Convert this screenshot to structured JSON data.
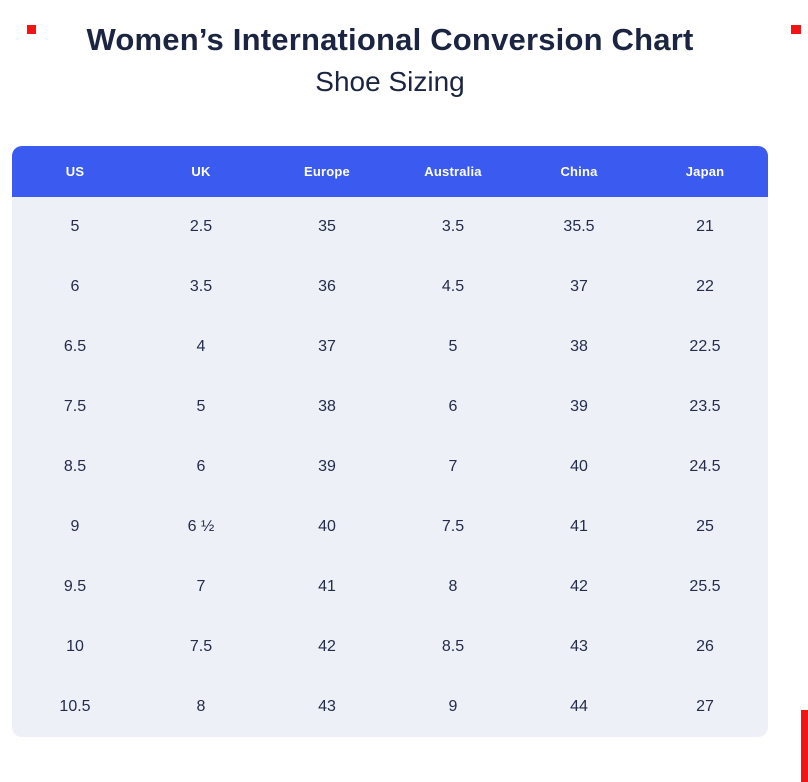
{
  "page": {
    "title": "Women’s International Conversion Chart",
    "subtitle": "Shoe Sizing"
  },
  "chart_data": {
    "type": "table",
    "title": "Women’s International Conversion Chart",
    "subtitle": "Shoe Sizing",
    "columns": [
      "US",
      "UK",
      "Europe",
      "Australia",
      "China",
      "Japan"
    ],
    "rows": [
      [
        "5",
        "2.5",
        "35",
        "3.5",
        "35.5",
        "21"
      ],
      [
        "6",
        "3.5",
        "36",
        "4.5",
        "37",
        "22"
      ],
      [
        "6.5",
        "4",
        "37",
        "5",
        "38",
        "22.5"
      ],
      [
        "7.5",
        "5",
        "38",
        "6",
        "39",
        "23.5"
      ],
      [
        "8.5",
        "6",
        "39",
        "7",
        "40",
        "24.5"
      ],
      [
        "9",
        "6 ½",
        "40",
        "7.5",
        "41",
        "25"
      ],
      [
        "9.5",
        "7",
        "41",
        "8",
        "42",
        "25.5"
      ],
      [
        "10",
        "7.5",
        "42",
        "8.5",
        "43",
        "26"
      ],
      [
        "10.5",
        "8",
        "43",
        "9",
        "44",
        "27"
      ]
    ]
  },
  "colors": {
    "page_bg": "#ffffff",
    "header_bg": "#3a5af0",
    "header_text": "#ffffff",
    "body_bg": "#eef0f8",
    "cell_text": "#232c49",
    "title_text": "#1b2440",
    "marker_red": "#f01414"
  }
}
